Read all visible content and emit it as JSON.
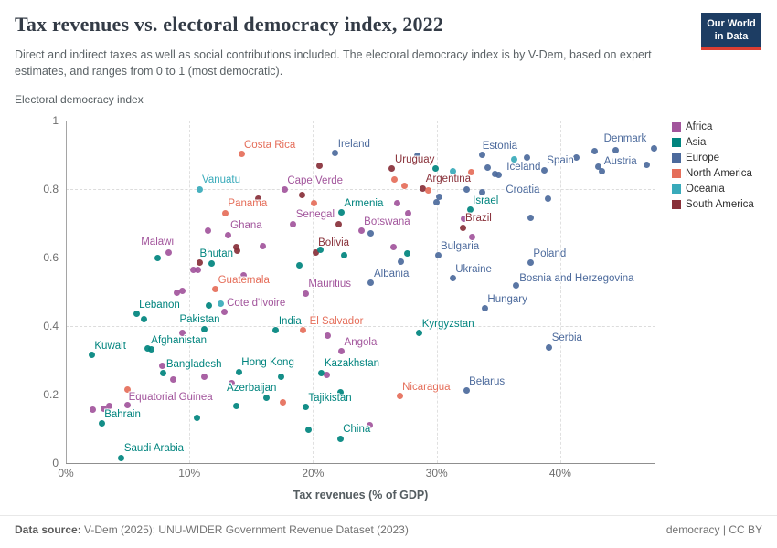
{
  "header": {
    "title": "Tax revenues vs. electoral democracy index, 2022",
    "subtitle": "Direct and indirect taxes as well as social contributions included. The electoral democracy index is by V-Dem, based on expert estimates, and ranges from 0 to 1 (most democratic).",
    "logo": {
      "line1": "Our World",
      "line2": "in Data"
    }
  },
  "chart": {
    "y_axis_title": "Electoral democracy index",
    "x_axis_title": "Tax revenues (% of GDP)",
    "x_max": 47.7,
    "y_max": 1,
    "x_ticks": [
      {
        "value": 0,
        "label": "0%"
      },
      {
        "value": 10,
        "label": "10%"
      },
      {
        "value": 20,
        "label": "20%"
      },
      {
        "value": 30,
        "label": "30%"
      },
      {
        "value": 40,
        "label": "40%"
      }
    ],
    "y_ticks": [
      {
        "value": 0,
        "label": "0"
      },
      {
        "value": 0.2,
        "label": "0.2"
      },
      {
        "value": 0.4,
        "label": "0.4"
      },
      {
        "value": 0.6,
        "label": "0.6"
      },
      {
        "value": 0.8,
        "label": "0.8"
      },
      {
        "value": 1,
        "label": "1"
      }
    ]
  },
  "legend": [
    {
      "label": "Africa",
      "color": "#a2559c"
    },
    {
      "label": "Asia",
      "color": "#00847e"
    },
    {
      "label": "Europe",
      "color": "#4c6a9c"
    },
    {
      "label": "North America",
      "color": "#e56e5a"
    },
    {
      "label": "Oceania",
      "color": "#38aaba"
    },
    {
      "label": "South America",
      "color": "#883039"
    }
  ],
  "chart_data": {
    "type": "scatter",
    "title": "Tax revenues vs. electoral democracy index, 2022",
    "xlabel": "Tax revenues (% of GDP)",
    "ylabel": "Electoral democracy index",
    "xlim": [
      0,
      47.7
    ],
    "ylim": [
      0,
      1
    ],
    "grid": true,
    "legend_position": "right",
    "points": [
      {
        "label": "Costa Rica",
        "continent": "North America",
        "x": 14.2,
        "y": 0.902
      },
      {
        "label": "Ireland",
        "continent": "Europe",
        "x": 21.8,
        "y": 0.905
      },
      {
        "label": "Estonia",
        "continent": "Europe",
        "x": 33.7,
        "y": 0.9,
        "lp": [
          0,
          -16
        ]
      },
      {
        "label": "Denmark",
        "continent": "Europe",
        "x": 47.6,
        "y": 0.92,
        "lp": [
          -55,
          -16
        ]
      },
      {
        "label": "Uruguay",
        "continent": "South America",
        "x": 26.4,
        "y": 0.86
      },
      {
        "label": "Iceland",
        "continent": "Europe",
        "x": 35.0,
        "y": 0.842,
        "lp": [
          9,
          -14
        ]
      },
      {
        "label": "Spain",
        "continent": "Europe",
        "x": 38.7,
        "y": 0.855
      },
      {
        "label": "Austria",
        "continent": "Europe",
        "x": 43.1,
        "y": 0.866,
        "lp": [
          6,
          -11
        ]
      },
      {
        "label": "Vanuatu",
        "continent": "Oceania",
        "x": 10.8,
        "y": 0.8
      },
      {
        "label": "Cape Verde",
        "continent": "Africa",
        "x": 17.7,
        "y": 0.798
      },
      {
        "label": "Argentina",
        "continent": "South America",
        "x": 28.9,
        "y": 0.802
      },
      {
        "label": "Croatia",
        "continent": "Europe",
        "x": 39.0,
        "y": 0.772,
        "lp": [
          -46,
          -16
        ]
      },
      {
        "label": "Panama",
        "continent": "North America",
        "x": 12.9,
        "y": 0.73
      },
      {
        "label": "Armenia",
        "continent": "Asia",
        "x": 22.3,
        "y": 0.731
      },
      {
        "label": "Senegal",
        "continent": "Africa",
        "x": 18.4,
        "y": 0.698
      },
      {
        "label": "Israel",
        "continent": "Asia",
        "x": 32.7,
        "y": 0.74
      },
      {
        "label": "Ghana",
        "continent": "Africa",
        "x": 13.1,
        "y": 0.666
      },
      {
        "label": "Botswana",
        "continent": "Africa",
        "x": 23.9,
        "y": 0.678
      },
      {
        "label": "Brazil",
        "continent": "South America",
        "x": 32.1,
        "y": 0.688
      },
      {
        "label": "Malawi",
        "continent": "Africa",
        "x": 8.3,
        "y": 0.615,
        "lp": [
          -30,
          -17
        ]
      },
      {
        "label": "Bolivia",
        "continent": "South America",
        "x": 20.2,
        "y": 0.616
      },
      {
        "label": "Bulgaria",
        "continent": "Europe",
        "x": 30.1,
        "y": 0.606
      },
      {
        "label": "Poland",
        "continent": "Europe",
        "x": 37.6,
        "y": 0.585
      },
      {
        "label": "Bhutan",
        "continent": "Asia",
        "x": 11.8,
        "y": 0.582,
        "lp": [
          -13,
          -17
        ]
      },
      {
        "label": "Guatemala",
        "continent": "North America",
        "x": 12.1,
        "y": 0.508
      },
      {
        "label": "Albania",
        "continent": "Europe",
        "x": 24.7,
        "y": 0.526
      },
      {
        "label": "Ukraine",
        "continent": "Europe",
        "x": 31.3,
        "y": 0.54
      },
      {
        "label": "Bosnia and Herzegovina",
        "continent": "Europe",
        "x": 36.4,
        "y": 0.518,
        "lp": [
          4,
          -14
        ]
      },
      {
        "label": "Mauritius",
        "continent": "Africa",
        "x": 19.4,
        "y": 0.495
      },
      {
        "label": "Cote d'Ivoire",
        "continent": "Africa",
        "x": 12.8,
        "y": 0.441
      },
      {
        "label": "Hungary",
        "continent": "Europe",
        "x": 33.9,
        "y": 0.451
      },
      {
        "label": "Lebanon",
        "continent": "Asia",
        "x": 5.7,
        "y": 0.435
      },
      {
        "label": "Pakistan",
        "continent": "Asia",
        "x": 11.2,
        "y": 0.39,
        "lp": [
          -27,
          -17
        ]
      },
      {
        "label": "India",
        "continent": "Asia",
        "x": 17.0,
        "y": 0.388
      },
      {
        "label": "El Salvador",
        "continent": "North America",
        "x": 19.2,
        "y": 0.388,
        "lp": [
          7,
          -16
        ]
      },
      {
        "label": "Kyrgyzstan",
        "continent": "Asia",
        "x": 28.6,
        "y": 0.38
      },
      {
        "label": "Serbia",
        "continent": "Europe",
        "x": 39.1,
        "y": 0.338
      },
      {
        "label": "Kuwait",
        "continent": "Asia",
        "x": 2.1,
        "y": 0.315
      },
      {
        "label": "Afghanistan",
        "continent": "Asia",
        "x": 6.9,
        "y": 0.332,
        "lp": [
          0,
          -16
        ]
      },
      {
        "label": "Angola",
        "continent": "Africa",
        "x": 22.3,
        "y": 0.326
      },
      {
        "label": "Bangladesh",
        "continent": "Asia",
        "x": 7.9,
        "y": 0.262
      },
      {
        "label": "Hong Kong",
        "continent": "Asia",
        "x": 14.0,
        "y": 0.266
      },
      {
        "label": "Kazakhstan",
        "continent": "Asia",
        "x": 20.7,
        "y": 0.264
      },
      {
        "label": "Equatorial Guinea",
        "continent": "Africa",
        "x": 5.0,
        "y": 0.169,
        "lp": [
          1,
          -15
        ]
      },
      {
        "label": "Azerbaijan",
        "continent": "Asia",
        "x": 16.2,
        "y": 0.19,
        "lp": [
          -43,
          -17
        ]
      },
      {
        "label": "Nicaragua",
        "continent": "North America",
        "x": 27.0,
        "y": 0.196
      },
      {
        "label": "Belarus",
        "continent": "Europe",
        "x": 32.4,
        "y": 0.211
      },
      {
        "label": "Tajikistan",
        "continent": "Asia",
        "x": 19.4,
        "y": 0.164
      },
      {
        "label": "Bahrain",
        "continent": "Asia",
        "x": 2.9,
        "y": 0.115
      },
      {
        "label": "China",
        "continent": "Asia",
        "x": 22.2,
        "y": 0.071
      },
      {
        "label": "Saudi Arabia",
        "continent": "Asia",
        "x": 4.5,
        "y": 0.015
      },
      {
        "label": "",
        "continent": "Europe",
        "x": 28.4,
        "y": 0.898
      },
      {
        "label": "",
        "continent": "Asia",
        "x": 29.9,
        "y": 0.861
      },
      {
        "label": "",
        "continent": "Oceania",
        "x": 31.3,
        "y": 0.853
      },
      {
        "label": "",
        "continent": "North America",
        "x": 32.8,
        "y": 0.85
      },
      {
        "label": "",
        "continent": "Europe",
        "x": 34.1,
        "y": 0.864
      },
      {
        "label": "",
        "continent": "Europe",
        "x": 34.7,
        "y": 0.845
      },
      {
        "label": "",
        "continent": "Oceania",
        "x": 36.3,
        "y": 0.888
      },
      {
        "label": "",
        "continent": "Europe",
        "x": 37.3,
        "y": 0.891
      },
      {
        "label": "",
        "continent": "Europe",
        "x": 41.3,
        "y": 0.892
      },
      {
        "label": "",
        "continent": "Europe",
        "x": 42.8,
        "y": 0.91
      },
      {
        "label": "",
        "continent": "Europe",
        "x": 44.5,
        "y": 0.913
      },
      {
        "label": "",
        "continent": "Europe",
        "x": 47.0,
        "y": 0.87
      },
      {
        "label": "",
        "continent": "Europe",
        "x": 43.4,
        "y": 0.852
      },
      {
        "label": "",
        "continent": "South America",
        "x": 20.5,
        "y": 0.868
      },
      {
        "label": "",
        "continent": "South America",
        "x": 19.1,
        "y": 0.782
      },
      {
        "label": "",
        "continent": "South America",
        "x": 15.6,
        "y": 0.772
      },
      {
        "label": "",
        "continent": "North America",
        "x": 20.1,
        "y": 0.759
      },
      {
        "label": "",
        "continent": "North America",
        "x": 26.6,
        "y": 0.828
      },
      {
        "label": "",
        "continent": "North America",
        "x": 27.4,
        "y": 0.809
      },
      {
        "label": "",
        "continent": "North America",
        "x": 29.3,
        "y": 0.796
      },
      {
        "label": "",
        "continent": "Europe",
        "x": 30.2,
        "y": 0.777
      },
      {
        "label": "",
        "continent": "Europe",
        "x": 30.0,
        "y": 0.762
      },
      {
        "label": "",
        "continent": "Europe",
        "x": 32.4,
        "y": 0.799
      },
      {
        "label": "",
        "continent": "Europe",
        "x": 33.7,
        "y": 0.791
      },
      {
        "label": "",
        "continent": "Africa",
        "x": 26.8,
        "y": 0.759
      },
      {
        "label": "",
        "continent": "Africa",
        "x": 27.7,
        "y": 0.729
      },
      {
        "label": "",
        "continent": "Africa",
        "x": 32.2,
        "y": 0.713
      },
      {
        "label": "",
        "continent": "South America",
        "x": 22.1,
        "y": 0.697
      },
      {
        "label": "",
        "continent": "Europe",
        "x": 24.7,
        "y": 0.67
      },
      {
        "label": "",
        "continent": "Europe",
        "x": 37.6,
        "y": 0.717
      },
      {
        "label": "",
        "continent": "Africa",
        "x": 11.5,
        "y": 0.679
      },
      {
        "label": "",
        "continent": "Asia",
        "x": 7.4,
        "y": 0.598
      },
      {
        "label": "",
        "continent": "South America",
        "x": 13.8,
        "y": 0.63
      },
      {
        "label": "",
        "continent": "South America",
        "x": 13.9,
        "y": 0.621
      },
      {
        "label": "",
        "continent": "Africa",
        "x": 15.9,
        "y": 0.633
      },
      {
        "label": "",
        "continent": "Asia",
        "x": 20.6,
        "y": 0.624
      },
      {
        "label": "",
        "continent": "Asia",
        "x": 22.5,
        "y": 0.608
      },
      {
        "label": "",
        "continent": "Africa",
        "x": 26.5,
        "y": 0.631
      },
      {
        "label": "",
        "continent": "Asia",
        "x": 27.6,
        "y": 0.613
      },
      {
        "label": "",
        "continent": "Europe",
        "x": 27.1,
        "y": 0.587
      },
      {
        "label": "",
        "continent": "Asia",
        "x": 18.9,
        "y": 0.578
      },
      {
        "label": "",
        "continent": "South America",
        "x": 10.8,
        "y": 0.586
      },
      {
        "label": "",
        "continent": "Africa",
        "x": 10.3,
        "y": 0.563
      },
      {
        "label": "",
        "continent": "Africa",
        "x": 10.7,
        "y": 0.564
      },
      {
        "label": "",
        "continent": "Africa",
        "x": 14.4,
        "y": 0.548
      },
      {
        "label": "",
        "continent": "Africa",
        "x": 9.0,
        "y": 0.498
      },
      {
        "label": "",
        "continent": "Africa",
        "x": 9.4,
        "y": 0.503
      },
      {
        "label": "",
        "continent": "Asia",
        "x": 11.6,
        "y": 0.46
      },
      {
        "label": "",
        "continent": "Oceania",
        "x": 12.5,
        "y": 0.466
      },
      {
        "label": "",
        "continent": "Africa",
        "x": 32.9,
        "y": 0.66
      },
      {
        "label": "",
        "continent": "Asia",
        "x": 6.3,
        "y": 0.42
      },
      {
        "label": "",
        "continent": "Africa",
        "x": 9.4,
        "y": 0.381
      },
      {
        "label": "",
        "continent": "Africa",
        "x": 21.2,
        "y": 0.371
      },
      {
        "label": "",
        "continent": "Asia",
        "x": 22.2,
        "y": 0.208
      },
      {
        "label": "",
        "continent": "Africa",
        "x": 13.4,
        "y": 0.233
      },
      {
        "label": "",
        "continent": "Africa",
        "x": 8.7,
        "y": 0.243
      },
      {
        "label": "",
        "continent": "Africa",
        "x": 11.2,
        "y": 0.251
      },
      {
        "label": "",
        "continent": "Africa",
        "x": 7.8,
        "y": 0.283
      },
      {
        "label": "",
        "continent": "Asia",
        "x": 17.4,
        "y": 0.253
      },
      {
        "label": "",
        "continent": "Africa",
        "x": 21.1,
        "y": 0.258
      },
      {
        "label": "",
        "continent": "North America",
        "x": 5.0,
        "y": 0.214
      },
      {
        "label": "",
        "continent": "North America",
        "x": 17.6,
        "y": 0.177
      },
      {
        "label": "",
        "continent": "Asia",
        "x": 13.8,
        "y": 0.166
      },
      {
        "label": "",
        "continent": "Africa",
        "x": 2.2,
        "y": 0.157
      },
      {
        "label": "",
        "continent": "Africa",
        "x": 3.1,
        "y": 0.16
      },
      {
        "label": "",
        "continent": "Africa",
        "x": 3.5,
        "y": 0.167
      },
      {
        "label": "",
        "continent": "Asia",
        "x": 10.6,
        "y": 0.132
      },
      {
        "label": "",
        "continent": "Asia",
        "x": 19.6,
        "y": 0.098
      },
      {
        "label": "",
        "continent": "Africa",
        "x": 24.6,
        "y": 0.11
      },
      {
        "label": "",
        "continent": "Asia",
        "x": 6.6,
        "y": 0.336
      }
    ]
  },
  "footer": {
    "source_label": "Data source:",
    "source": "V-Dem (2025); UNU-WIDER Government Revenue Dataset (2023)",
    "license": "democracy | CC BY"
  }
}
